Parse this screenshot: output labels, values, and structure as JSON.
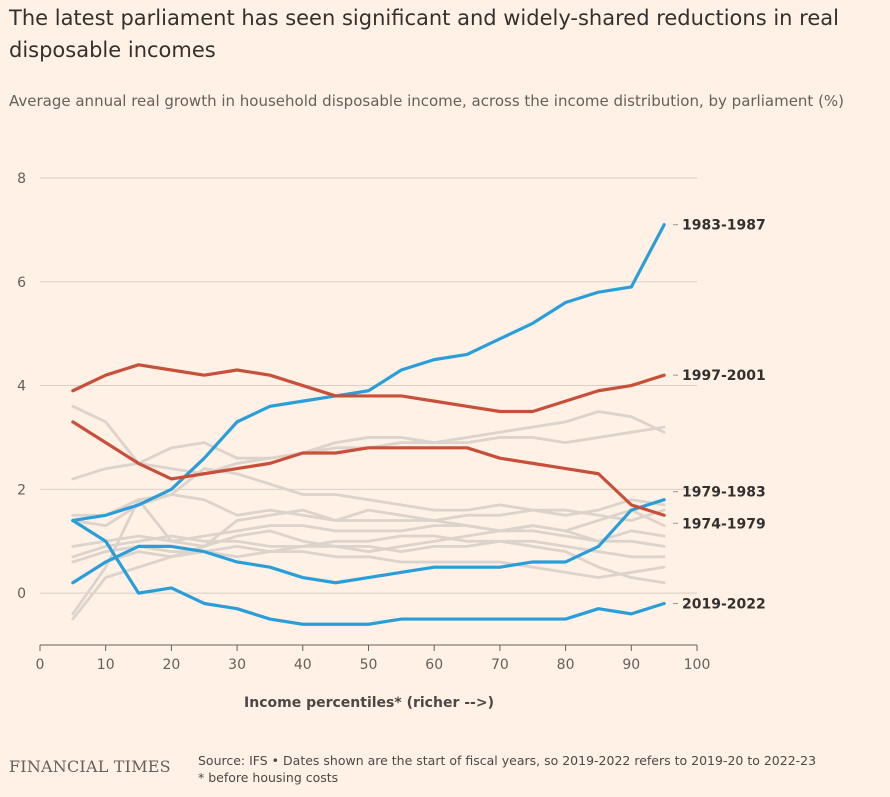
{
  "title": "The latest parliament has seen significant and widely-shared reductions in real disposable incomes",
  "subtitle": "Average annual real growth in household disposable income, across the income distribution, by parliament (%)",
  "logo": "FINANCIAL TIMES",
  "source_line1": "Source: IFS • Dates shown are the start of fiscal years, so 2019-2022 refers to 2019-20 to 2022-23",
  "source_line2": "* before housing costs",
  "colors": {
    "background": "#fff1e5",
    "gridline": "#d9cfc7",
    "highlight_blue": "#2a9ed8",
    "highlight_red": "#c8503a",
    "other_grey": "#dcd3cc"
  },
  "chart_data": {
    "type": "line",
    "title": "The latest parliament has seen significant and widely-shared reductions in real disposable incomes",
    "subtitle": "Average annual real growth in household disposable income, across the income distribution, by parliament (%)",
    "xlabel": "Income percentiles* (richer -->)",
    "ylabel": "",
    "xlim": [
      0,
      100
    ],
    "ylim": [
      -1,
      8
    ],
    "x_ticks": [
      "0",
      "10",
      "20",
      "30",
      "40",
      "50",
      "60",
      "70",
      "80",
      "90",
      "100"
    ],
    "y_ticks": [
      "0",
      "2",
      "4",
      "6",
      "8"
    ],
    "x_tick_values": [
      0,
      10,
      20,
      30,
      40,
      50,
      60,
      70,
      80,
      90,
      100
    ],
    "y_tick_values": [
      0,
      2,
      4,
      6,
      8
    ],
    "grid": "horizontal",
    "legend": "direct labels at right end of lines",
    "x": [
      5,
      10,
      15,
      20,
      25,
      30,
      35,
      40,
      45,
      50,
      55,
      60,
      65,
      70,
      75,
      80,
      85,
      90,
      95
    ],
    "series": [
      {
        "name": "",
        "highlight": false,
        "values": [
          3.6,
          3.3,
          2.5,
          2.4,
          2.3,
          2.5,
          2.6,
          2.7,
          2.8,
          2.8,
          2.9,
          2.9,
          3.0,
          3.1,
          3.2,
          3.3,
          3.5,
          3.4,
          3.1
        ]
      },
      {
        "name": "",
        "highlight": false,
        "values": [
          2.2,
          2.4,
          2.5,
          2.8,
          2.9,
          2.6,
          2.6,
          2.7,
          2.9,
          3.0,
          3.0,
          2.9,
          2.9,
          3.0,
          3.0,
          2.9,
          3.0,
          3.1,
          3.2
        ]
      },
      {
        "name": "",
        "highlight": false,
        "values": [
          1.4,
          1.3,
          1.7,
          1.9,
          2.4,
          2.3,
          2.1,
          1.9,
          1.9,
          1.8,
          1.7,
          1.6,
          1.6,
          1.7,
          1.6,
          1.5,
          1.6,
          1.8,
          1.7
        ]
      },
      {
        "name": "",
        "highlight": false,
        "values": [
          1.5,
          1.5,
          1.8,
          1.9,
          1.8,
          1.5,
          1.6,
          1.5,
          1.4,
          1.4,
          1.4,
          1.4,
          1.5,
          1.5,
          1.6,
          1.6,
          1.5,
          1.4,
          1.6
        ]
      },
      {
        "name": "",
        "highlight": false,
        "values": [
          0.9,
          1.0,
          1.1,
          1.0,
          1.1,
          1.2,
          1.3,
          1.3,
          1.2,
          1.2,
          1.2,
          1.3,
          1.3,
          1.2,
          1.2,
          1.1,
          1.0,
          1.0,
          0.9
        ]
      },
      {
        "name": "",
        "highlight": false,
        "values": [
          0.7,
          0.9,
          1.0,
          1.1,
          1.0,
          1.0,
          0.9,
          0.9,
          1.0,
          1.0,
          1.1,
          1.1,
          1.0,
          1.0,
          1.0,
          0.9,
          0.8,
          0.7,
          0.7
        ]
      },
      {
        "name": "",
        "highlight": false,
        "values": [
          0.6,
          0.8,
          0.9,
          0.8,
          0.8,
          0.7,
          0.8,
          0.8,
          0.7,
          0.7,
          0.6,
          0.6,
          0.6,
          0.6,
          0.5,
          0.4,
          0.3,
          0.4,
          0.5
        ]
      },
      {
        "name": "",
        "highlight": false,
        "values": [
          -0.5,
          0.3,
          0.5,
          0.7,
          0.8,
          0.9,
          0.8,
          0.9,
          0.9,
          0.9,
          0.8,
          0.9,
          0.9,
          1.0,
          0.9,
          0.8,
          0.5,
          0.3,
          0.2
        ]
      },
      {
        "name": "",
        "highlight": false,
        "values": [
          -0.4,
          0.5,
          1.8,
          1.0,
          0.9,
          1.4,
          1.5,
          1.6,
          1.4,
          1.6,
          1.5,
          1.4,
          1.3,
          1.2,
          1.3,
          1.2,
          1.0,
          1.2,
          1.1
        ]
      },
      {
        "name": "",
        "highlight": false,
        "values": [
          0.2,
          0.6,
          0.8,
          0.7,
          0.9,
          1.1,
          1.2,
          1.0,
          0.9,
          0.8,
          0.9,
          1.0,
          1.1,
          1.2,
          1.3,
          1.2,
          1.4,
          1.6,
          1.3
        ]
      },
      {
        "name": "1983-1987",
        "highlight": true,
        "color": "#2a9ed8",
        "values": [
          1.4,
          1.5,
          1.7,
          2.0,
          2.6,
          3.3,
          3.6,
          3.7,
          3.8,
          3.9,
          4.3,
          4.5,
          4.6,
          4.9,
          5.2,
          5.6,
          5.8,
          5.9,
          7.1
        ]
      },
      {
        "name": "1997-2001",
        "highlight": true,
        "color": "#c8503a",
        "values": [
          3.9,
          4.2,
          4.4,
          4.3,
          4.2,
          4.3,
          4.2,
          4.0,
          3.8,
          3.8,
          3.8,
          3.7,
          3.6,
          3.5,
          3.5,
          3.7,
          3.9,
          4.0,
          4.2
        ]
      },
      {
        "name": "1979-1983",
        "highlight": true,
        "color": "#2a9ed8",
        "values": [
          0.2,
          0.6,
          0.9,
          0.9,
          0.8,
          0.6,
          0.5,
          0.3,
          0.2,
          0.3,
          0.4,
          0.5,
          0.5,
          0.5,
          0.6,
          0.6,
          0.9,
          1.6,
          1.8
        ]
      },
      {
        "name": "1974-1979",
        "highlight": true,
        "color": "#c8503a",
        "values": [
          3.3,
          2.9,
          2.5,
          2.2,
          2.3,
          2.4,
          2.5,
          2.7,
          2.7,
          2.8,
          2.8,
          2.8,
          2.8,
          2.6,
          2.5,
          2.4,
          2.3,
          1.7,
          1.5
        ]
      },
      {
        "name": "2019-2022",
        "highlight": true,
        "color": "#2a9ed8",
        "values": [
          1.4,
          1.0,
          0.0,
          0.1,
          -0.2,
          -0.3,
          -0.5,
          -0.6,
          -0.6,
          -0.6,
          -0.5,
          -0.5,
          -0.5,
          -0.5,
          -0.5,
          -0.5,
          -0.3,
          -0.4,
          -0.2
        ]
      }
    ]
  }
}
